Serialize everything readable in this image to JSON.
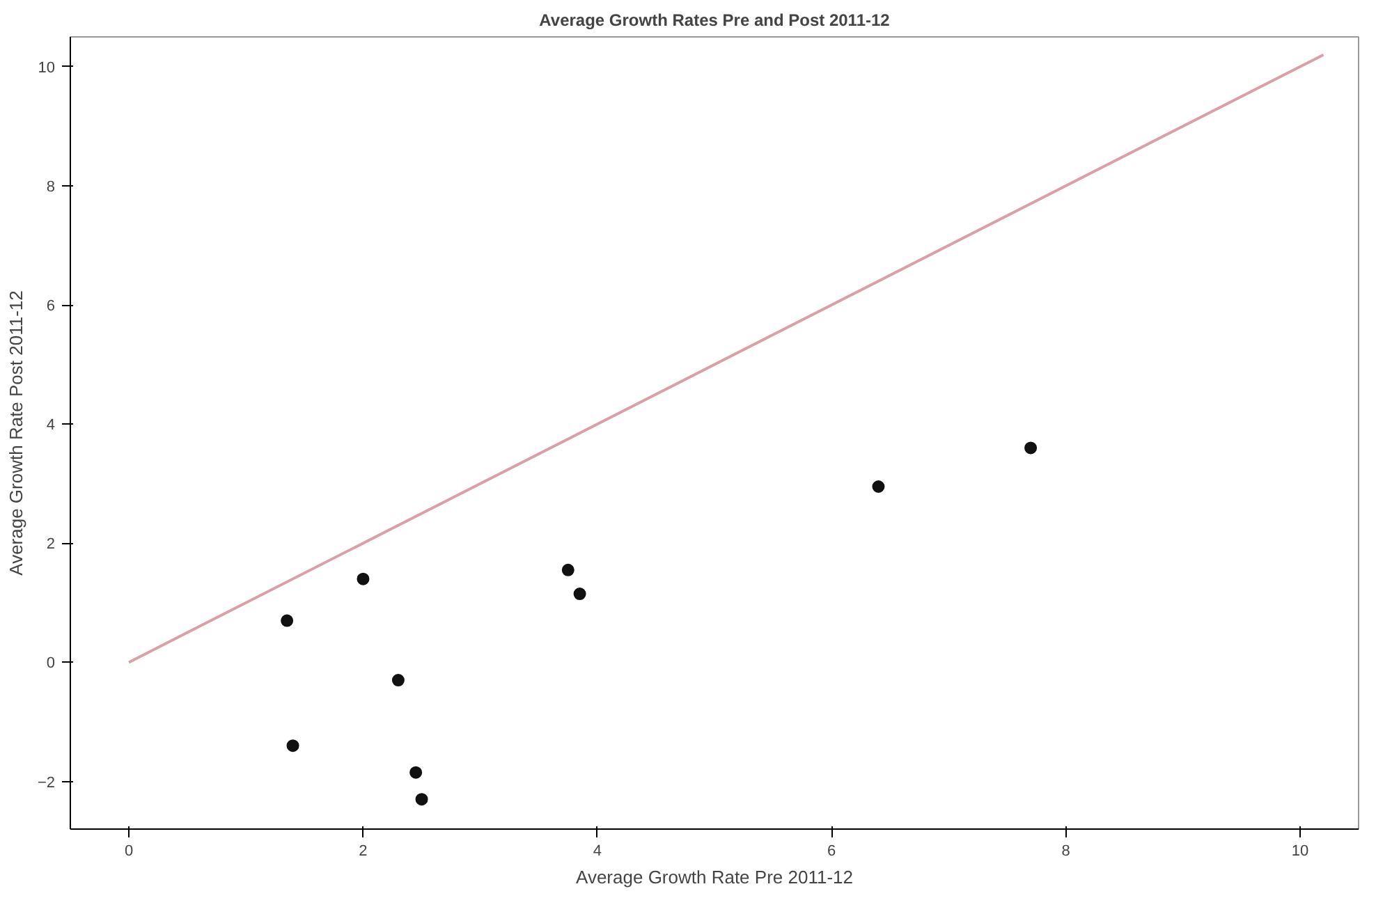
{
  "chart_data": {
    "type": "scatter",
    "title": "Average Growth Rates Pre and Post 2011-12",
    "xlabel": "Average Growth Rate Pre 2011-12",
    "ylabel": "Average Growth Rate Post 2011-12",
    "xlim": [
      -0.5,
      10.5
    ],
    "ylim": [
      -2.8,
      10.5
    ],
    "xticks": [
      0,
      2,
      4,
      6,
      8,
      10
    ],
    "yticks": [
      -2,
      0,
      2,
      4,
      6,
      8,
      10
    ],
    "grid": false,
    "series": [
      {
        "marker": "circle",
        "color": "#111111",
        "x": [
          1.35,
          2.0,
          1.4,
          2.3,
          2.45,
          2.5,
          3.75,
          3.85,
          6.4,
          7.7
        ],
        "values": [
          0.7,
          1.4,
          -1.4,
          -0.3,
          -1.85,
          -2.3,
          1.55,
          1.15,
          2.95,
          3.6
        ]
      },
      {
        "type": "line",
        "color": "#d9a0a8",
        "x": [
          0,
          10.2
        ],
        "values": [
          0,
          10.2
        ]
      }
    ]
  }
}
